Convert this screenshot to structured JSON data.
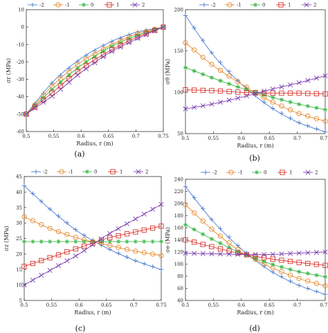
{
  "colors": {
    "-2": "#4a7bd0",
    "-1": "#e8892c",
    "0": "#3db84a",
    "1": "#d9322a",
    "2": "#7a3fb0"
  },
  "chart_data": [
    {
      "type": "line",
      "panel_label": "(a)",
      "xlabel": "Radius, r (m)",
      "ylabel": "σr (MPa)",
      "xlim": [
        0.5,
        0.75
      ],
      "ylim": [
        -60,
        10
      ],
      "xticks": [
        0.5,
        0.55,
        0.6,
        0.65,
        0.7,
        0.75
      ],
      "yticks": [
        10,
        0,
        -10,
        -20,
        -30,
        -40,
        -50,
        -60
      ],
      "legend": "top",
      "series": [
        {
          "name": "-2",
          "marker": "plus",
          "x": [
            0.5,
            0.55,
            0.6,
            0.65,
            0.7,
            0.75
          ],
          "y": [
            -50,
            -31,
            -18,
            -9,
            -3,
            0
          ]
        },
        {
          "name": "-1",
          "marker": "circle",
          "x": [
            0.5,
            0.55,
            0.6,
            0.65,
            0.7,
            0.75
          ],
          "y": [
            -50,
            -33,
            -20,
            -11,
            -4,
            0
          ]
        },
        {
          "name": "0",
          "marker": "star",
          "x": [
            0.5,
            0.55,
            0.6,
            0.65,
            0.7,
            0.75
          ],
          "y": [
            -50,
            -35,
            -22,
            -12,
            -5,
            0
          ]
        },
        {
          "name": "1",
          "marker": "square",
          "x": [
            0.5,
            0.55,
            0.6,
            0.65,
            0.7,
            0.75
          ],
          "y": [
            -50,
            -37,
            -24,
            -14,
            -6,
            0
          ]
        },
        {
          "name": "2",
          "marker": "cross",
          "x": [
            0.5,
            0.55,
            0.6,
            0.65,
            0.7,
            0.75
          ],
          "y": [
            -50,
            -39,
            -26,
            -15,
            -7,
            0
          ]
        }
      ]
    },
    {
      "type": "line",
      "panel_label": "(b)",
      "xlabel": "Radius, r (m)",
      "ylabel": "σθ (MPa)",
      "xlim": [
        0.5,
        0.75
      ],
      "ylim": [
        50,
        200
      ],
      "xticks": [
        0.5,
        0.55,
        0.6,
        0.65,
        0.7,
        0.75
      ],
      "yticks": [
        200,
        150,
        100,
        50
      ],
      "legend": "top",
      "series": [
        {
          "name": "-2",
          "marker": "plus",
          "x": [
            0.5,
            0.55,
            0.6,
            0.65,
            0.7,
            0.75
          ],
          "y": [
            193,
            145,
            110,
            83,
            64,
            52
          ]
        },
        {
          "name": "-1",
          "marker": "circle",
          "x": [
            0.5,
            0.55,
            0.6,
            0.65,
            0.7,
            0.75
          ],
          "y": [
            160,
            132,
            110,
            90,
            75,
            65
          ]
        },
        {
          "name": "0",
          "marker": "star",
          "x": [
            0.5,
            0.55,
            0.6,
            0.65,
            0.7,
            0.75
          ],
          "y": [
            130,
            117,
            105,
            95,
            86,
            79
          ]
        },
        {
          "name": "1",
          "marker": "square",
          "x": [
            0.5,
            0.55,
            0.6,
            0.65,
            0.7,
            0.75
          ],
          "y": [
            103,
            102,
            100,
            99,
            99,
            98
          ]
        },
        {
          "name": "2",
          "marker": "cross",
          "x": [
            0.5,
            0.55,
            0.6,
            0.65,
            0.7,
            0.75
          ],
          "y": [
            80,
            86,
            94,
            103,
            111,
            120
          ]
        }
      ]
    },
    {
      "type": "line",
      "panel_label": "(c)",
      "xlabel": "Radius, r (m)",
      "ylabel": "σz (MPa)",
      "xlim": [
        0.5,
        0.75
      ],
      "ylim": [
        5,
        45
      ],
      "xticks": [
        0.5,
        0.55,
        0.6,
        0.65,
        0.7,
        0.75
      ],
      "yticks": [
        45,
        40,
        35,
        30,
        25,
        20,
        15,
        10,
        5
      ],
      "legend": "top",
      "series": [
        {
          "name": "-2",
          "marker": "plus",
          "x": [
            0.5,
            0.55,
            0.6,
            0.65,
            0.7,
            0.75
          ],
          "y": [
            42,
            34,
            27,
            22,
            18,
            15
          ]
        },
        {
          "name": "-1",
          "marker": "circle",
          "x": [
            0.5,
            0.55,
            0.6,
            0.65,
            0.7,
            0.75
          ],
          "y": [
            32,
            28,
            25,
            23,
            21,
            19.5
          ]
        },
        {
          "name": "0",
          "marker": "star",
          "x": [
            0.5,
            0.55,
            0.6,
            0.65,
            0.7,
            0.75
          ],
          "y": [
            24,
            24,
            24,
            24,
            24,
            24
          ]
        },
        {
          "name": "1",
          "marker": "square",
          "x": [
            0.5,
            0.55,
            0.6,
            0.65,
            0.7,
            0.75
          ],
          "y": [
            16,
            19,
            22,
            25,
            27,
            29
          ]
        },
        {
          "name": "2",
          "marker": "cross",
          "x": [
            0.5,
            0.55,
            0.6,
            0.65,
            0.7,
            0.75
          ],
          "y": [
            10,
            15,
            20,
            26,
            31,
            36
          ]
        }
      ]
    },
    {
      "type": "line",
      "panel_label": "(d)",
      "xlabel": "Radius, r (m)",
      "ylabel": "σe (MPa)",
      "xlim": [
        0.5,
        0.75
      ],
      "ylim": [
        40,
        240
      ],
      "xticks": [
        0.5,
        0.55,
        0.6,
        0.65,
        0.7,
        0.75
      ],
      "yticks": [
        240,
        220,
        200,
        180,
        160,
        140,
        120,
        100,
        80,
        60,
        40
      ],
      "legend": "top",
      "series": [
        {
          "name": "-2",
          "marker": "plus",
          "x": [
            0.5,
            0.55,
            0.6,
            0.65,
            0.7,
            0.75
          ],
          "y": [
            228,
            170,
            125,
            90,
            66,
            50
          ]
        },
        {
          "name": "-1",
          "marker": "circle",
          "x": [
            0.5,
            0.55,
            0.6,
            0.65,
            0.7,
            0.75
          ],
          "y": [
            198,
            155,
            120,
            96,
            77,
            64
          ]
        },
        {
          "name": "0",
          "marker": "star",
          "x": [
            0.5,
            0.55,
            0.6,
            0.65,
            0.7,
            0.75
          ],
          "y": [
            165,
            140,
            118,
            101,
            88,
            79
          ]
        },
        {
          "name": "1",
          "marker": "square",
          "x": [
            0.5,
            0.55,
            0.6,
            0.65,
            0.7,
            0.75
          ],
          "y": [
            140,
            128,
            117,
            109,
            103,
            98
          ]
        },
        {
          "name": "2",
          "marker": "cross",
          "x": [
            0.5,
            0.55,
            0.6,
            0.65,
            0.7,
            0.75
          ],
          "y": [
            118,
            117,
            116,
            116,
            118,
            120
          ]
        }
      ]
    }
  ]
}
